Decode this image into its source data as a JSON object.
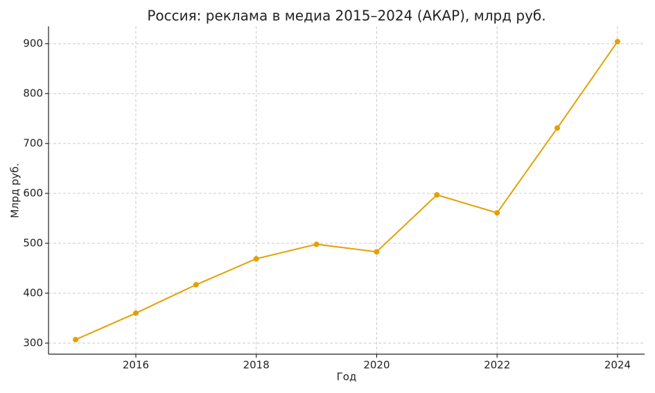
{
  "chart_data": {
    "type": "line",
    "title": "Россия: реклама в медиа 2015–2024 (АКАР), млрд руб.",
    "x_label": "Год",
    "y_label": "Млрд руб.",
    "x": [
      2015,
      2016,
      2017,
      2018,
      2019,
      2020,
      2021,
      2022,
      2023,
      2024
    ],
    "series": [
      {
        "name": "Реклама в медиа",
        "color": "#e69f00",
        "values": [
          307,
          360,
          417,
          469,
          498,
          483,
          597,
          561,
          731,
          904
        ]
      }
    ],
    "xlim": [
      2014.55,
      2024.45
    ],
    "xticks": [
      2016,
      2018,
      2020,
      2022,
      2024
    ],
    "ylim": [
      277.8,
      934.7
    ],
    "yticks": [
      300,
      400,
      500,
      600,
      700,
      800,
      900
    ],
    "grid": true,
    "legend": false
  }
}
